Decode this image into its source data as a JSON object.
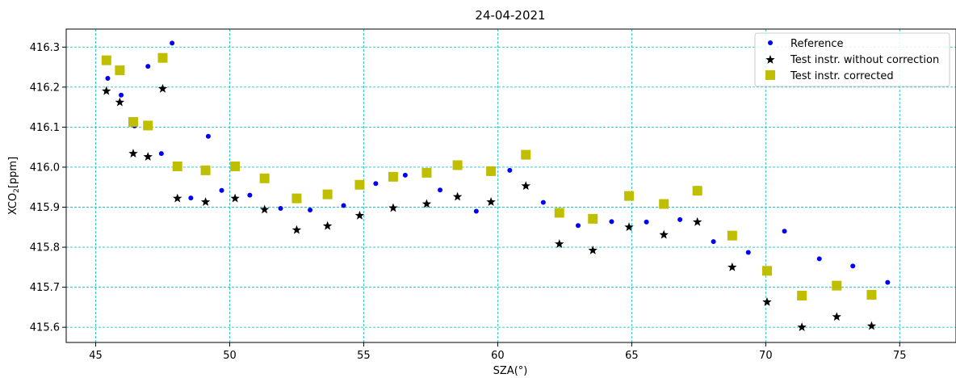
{
  "chart_data": {
    "type": "scatter",
    "title": "24-04-2021",
    "xlabel": "SZA(°)",
    "ylabel_main": "XCO",
    "ylabel_sub": "2",
    "ylabel_unit": "[ppm]",
    "xlim": [
      43.9,
      77.1
    ],
    "ylim": [
      415.562,
      416.345
    ],
    "xticks": [
      45,
      50,
      55,
      60,
      65,
      70,
      75
    ],
    "yticks": [
      415.6,
      415.7,
      415.8,
      415.9,
      416.0,
      416.1,
      416.2,
      416.3
    ],
    "ytick_labels": [
      "415.6",
      "415.7",
      "415.8",
      "415.9",
      "416.0",
      "416.1",
      "416.2",
      "416.3"
    ],
    "grid": true,
    "legend_position": "top-right",
    "series": [
      {
        "name": "Reference",
        "marker": "circle",
        "color": "#0000ff",
        "x": [
          45.45,
          45.95,
          46.45,
          46.95,
          47.45,
          47.85,
          48.55,
          49.2,
          49.7,
          50.75,
          51.9,
          53.0,
          54.25,
          55.45,
          56.55,
          57.85,
          59.2,
          60.45,
          61.7,
          63.0,
          64.25,
          65.55,
          66.8,
          68.05,
          69.35,
          70.7,
          72.0,
          73.25,
          74.55
        ],
        "y": [
          416.222,
          416.18,
          416.103,
          416.252,
          416.034,
          416.31,
          415.923,
          416.077,
          415.942,
          415.93,
          415.897,
          415.893,
          415.904,
          415.959,
          415.98,
          415.943,
          415.89,
          415.992,
          415.912,
          415.854,
          415.864,
          415.863,
          415.869,
          415.814,
          415.787,
          415.84,
          415.771,
          415.753,
          415.712
        ]
      },
      {
        "name": "Test instr. without correction",
        "marker": "star",
        "color": "#000000",
        "x": [
          45.4,
          45.9,
          46.4,
          46.95,
          47.5,
          48.05,
          49.1,
          50.2,
          51.3,
          52.5,
          53.65,
          54.85,
          56.1,
          57.35,
          58.5,
          59.75,
          61.05,
          62.3,
          63.55,
          64.9,
          66.2,
          67.45,
          68.75,
          70.05,
          71.35,
          72.65,
          73.95
        ],
        "y": [
          416.19,
          416.162,
          416.034,
          416.026,
          416.196,
          415.922,
          415.913,
          415.922,
          415.894,
          415.843,
          415.853,
          415.879,
          415.898,
          415.908,
          415.926,
          415.913,
          415.953,
          415.808,
          415.792,
          415.85,
          415.831,
          415.863,
          415.75,
          415.663,
          415.6,
          415.626,
          415.603
        ]
      },
      {
        "name": "Test instr. corrected",
        "marker": "square",
        "color": "#bfbf00",
        "x": [
          45.4,
          45.9,
          46.4,
          46.95,
          47.5,
          48.05,
          49.1,
          50.2,
          51.3,
          52.5,
          53.65,
          54.85,
          56.1,
          57.35,
          58.5,
          59.75,
          61.05,
          62.3,
          63.55,
          64.9,
          66.2,
          67.45,
          68.75,
          70.05,
          71.35,
          72.65,
          73.95
        ],
        "y": [
          416.267,
          416.242,
          416.113,
          416.104,
          416.273,
          416.002,
          415.992,
          416.002,
          415.972,
          415.922,
          415.932,
          415.956,
          415.976,
          415.986,
          416.005,
          415.99,
          416.031,
          415.886,
          415.871,
          415.928,
          415.908,
          415.941,
          415.829,
          415.741,
          415.679,
          415.704,
          415.681
        ]
      }
    ]
  }
}
